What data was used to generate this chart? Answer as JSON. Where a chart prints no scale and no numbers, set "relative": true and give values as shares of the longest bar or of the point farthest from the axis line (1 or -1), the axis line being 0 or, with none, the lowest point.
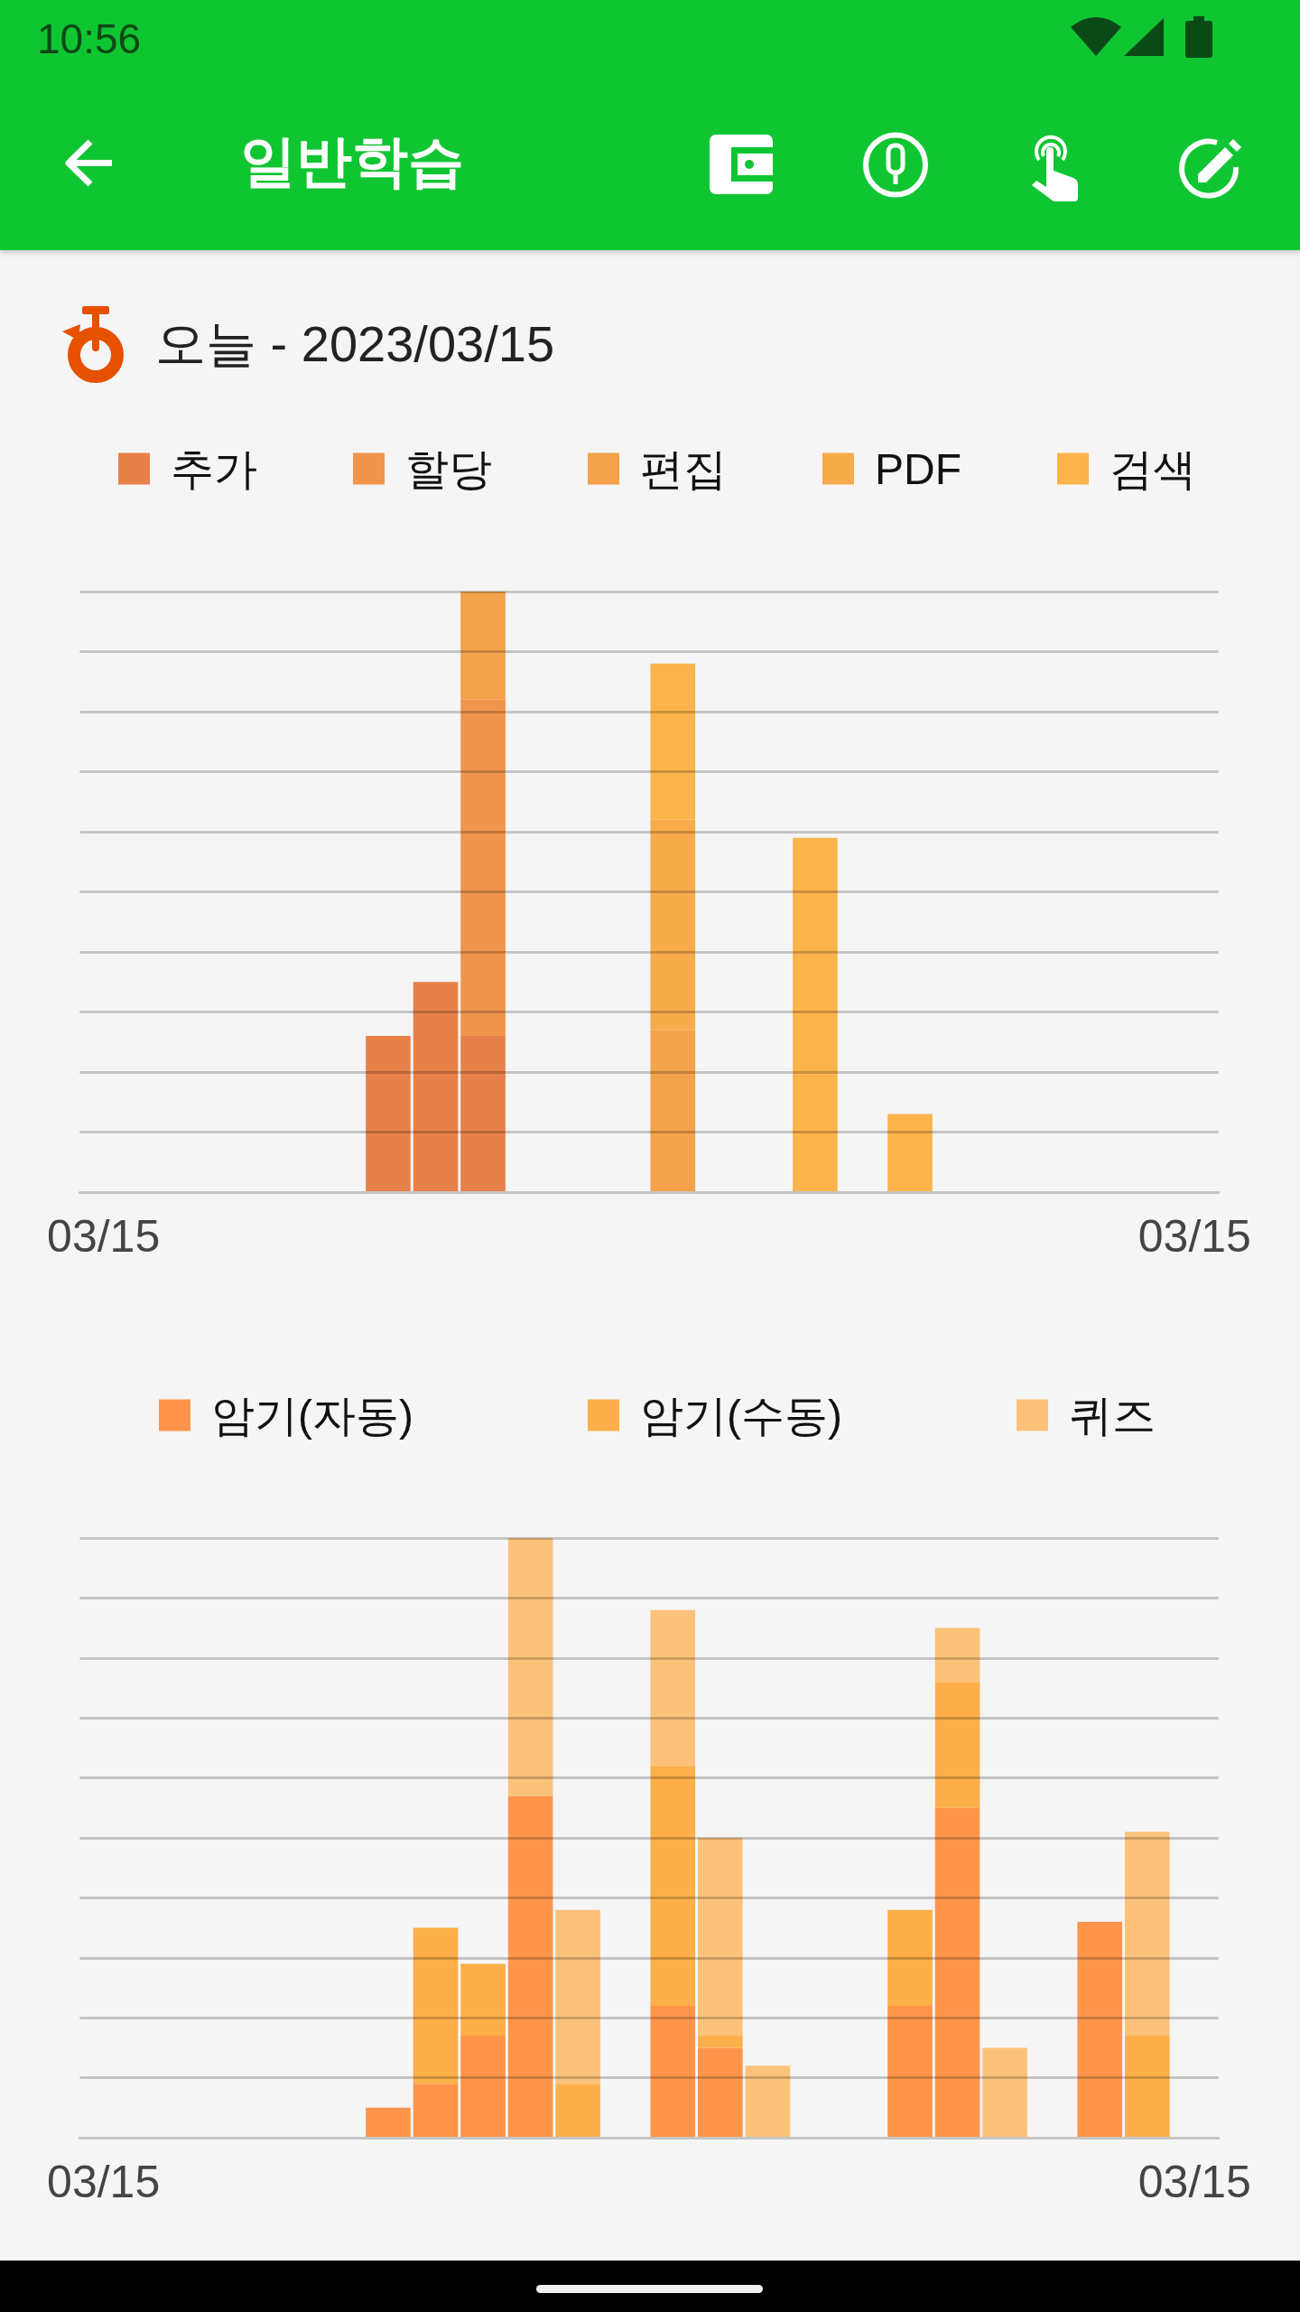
{
  "chart_data": [
    {
      "type": "bar",
      "title": "일반학습",
      "subtitle": "오늘 - 2023/03/15",
      "annotations": [
        "10:56"
      ],
      "relative": true,
      "stacked": true,
      "grid": "y",
      "legend": "top",
      "categories": [
        "03/15",
        null,
        null,
        null,
        null,
        null,
        null,
        null,
        null,
        null,
        null,
        null,
        null,
        null,
        null,
        null,
        null,
        null,
        null,
        null,
        null,
        null,
        null,
        "03/15"
      ],
      "series": [
        {
          "name": "추가",
          "color": "#e8804a",
          "values": [
            null,
            null,
            null,
            null,
            null,
            null,
            0.26,
            0.35,
            0.26,
            null,
            null,
            null,
            null,
            null,
            null,
            null,
            null,
            null,
            null,
            null,
            null,
            null,
            null,
            null
          ]
        },
        {
          "name": "할당",
          "color": "#f0954b",
          "values": [
            null,
            null,
            null,
            null,
            null,
            null,
            null,
            null,
            0.56,
            null,
            null,
            null,
            null,
            null,
            null,
            null,
            null,
            null,
            null,
            null,
            null,
            null,
            null,
            null
          ]
        },
        {
          "name": "편집",
          "color": "#f4a24b",
          "values": [
            null,
            null,
            null,
            null,
            null,
            null,
            null,
            null,
            0.18,
            null,
            null,
            null,
            0.27,
            null,
            null,
            null,
            null,
            null,
            null,
            null,
            null,
            null,
            null,
            null
          ]
        },
        {
          "name": "PDF",
          "color": "#f7ab4b",
          "values": [
            null,
            null,
            null,
            null,
            null,
            null,
            null,
            null,
            null,
            null,
            null,
            null,
            0.35,
            null,
            null,
            null,
            null,
            null,
            null,
            null,
            null,
            null,
            null,
            null
          ]
        },
        {
          "name": "검색",
          "color": "#fbb44b",
          "values": [
            null,
            null,
            null,
            null,
            null,
            null,
            null,
            null,
            null,
            null,
            null,
            null,
            0.26,
            null,
            null,
            0.59,
            null,
            0.13,
            null,
            null,
            null,
            null,
            null,
            null
          ]
        }
      ]
    },
    {
      "type": "bar",
      "relative": true,
      "stacked": true,
      "grid": "y",
      "legend": "top",
      "categories": [
        "03/15",
        null,
        null,
        null,
        null,
        null,
        null,
        null,
        null,
        null,
        null,
        null,
        null,
        null,
        null,
        null,
        null,
        null,
        null,
        null,
        null,
        null,
        null,
        "03/15"
      ],
      "series": [
        {
          "name": "암기(자동)",
          "color": "#fe954a",
          "values": [
            null,
            null,
            null,
            null,
            null,
            null,
            0.05,
            0.09,
            0.17,
            0.57,
            null,
            null,
            0.22,
            0.15,
            null,
            null,
            null,
            0.22,
            0.55,
            null,
            null,
            0.36,
            null,
            null
          ]
        },
        {
          "name": "암기(수동)",
          "color": "#fdaf4a",
          "values": [
            null,
            null,
            null,
            null,
            null,
            null,
            null,
            0.26,
            0.12,
            null,
            0.09,
            null,
            0.4,
            0.02,
            null,
            null,
            null,
            0.16,
            0.21,
            null,
            null,
            null,
            0.17,
            null
          ]
        },
        {
          "name": "퀴즈",
          "color": "#fdc27a",
          "values": [
            null,
            null,
            null,
            null,
            null,
            null,
            null,
            null,
            null,
            0.43,
            0.29,
            null,
            0.26,
            0.33,
            0.12,
            null,
            null,
            null,
            0.09,
            0.15,
            null,
            null,
            0.34,
            null
          ]
        }
      ]
    }
  ]
}
